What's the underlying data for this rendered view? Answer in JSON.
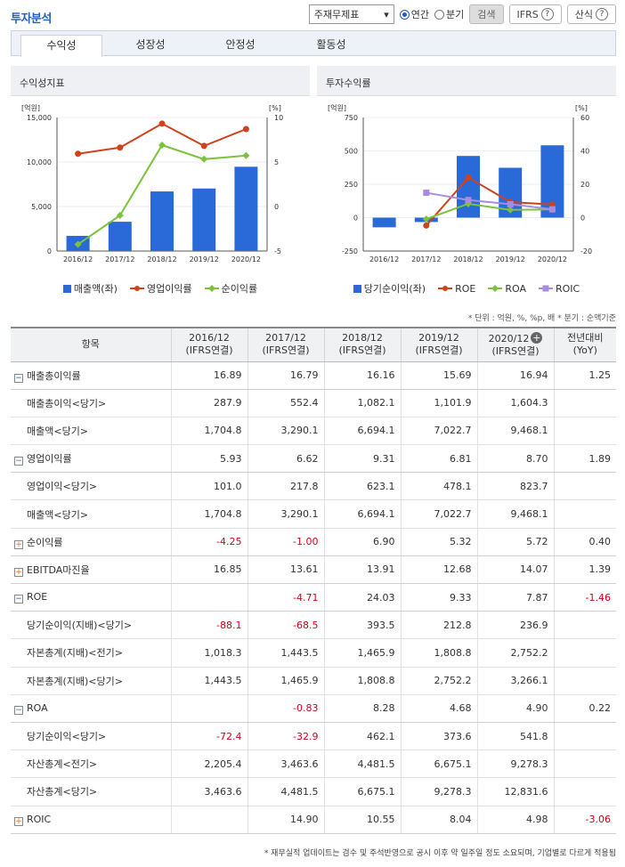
{
  "header": {
    "title": "투자분석",
    "select_value": "주재무제표",
    "radio_annual": "연간",
    "radio_quarter": "분기",
    "search_label": "검색",
    "ifrs_label": "IFRS",
    "formula_label": "산식",
    "help_glyph": "?"
  },
  "tabs": [
    "수익성",
    "성장성",
    "안정성",
    "활동성"
  ],
  "chart_data": [
    {
      "type": "bar",
      "title": "수익성지표",
      "categories": [
        "2016/12",
        "2017/12",
        "2018/12",
        "2019/12",
        "2020/12"
      ],
      "y_left_label": "[억원]",
      "y_right_label": "[%]",
      "y_left_ticks": [
        "15,000",
        "10,000",
        "5,000",
        "0"
      ],
      "y_right_ticks": [
        "10",
        "5",
        "0",
        "-5"
      ],
      "y_left_range": [
        0,
        15000
      ],
      "y_right_range": [
        -5,
        10
      ],
      "series": [
        {
          "name": "매출액(좌)",
          "kind": "bar",
          "axis": "left",
          "color": "#2a6ad8",
          "values": [
            1704.8,
            3290.1,
            6694.1,
            7022.7,
            9468.1
          ]
        },
        {
          "name": "영업이익률",
          "kind": "line",
          "axis": "right",
          "color": "#d0421b",
          "values": [
            5.93,
            6.62,
            9.31,
            6.81,
            8.7
          ]
        },
        {
          "name": "순이익률",
          "kind": "line",
          "axis": "right",
          "color": "#7cc23a",
          "values": [
            -4.25,
            -1.0,
            6.9,
            5.32,
            5.72
          ]
        }
      ]
    },
    {
      "type": "bar",
      "title": "투자수익률",
      "categories": [
        "2016/12",
        "2017/12",
        "2018/12",
        "2019/12",
        "2020/12"
      ],
      "y_left_label": "[억원]",
      "y_right_label": "[%]",
      "y_left_ticks": [
        "750",
        "500",
        "250",
        "0",
        "-250"
      ],
      "y_right_ticks": [
        "60",
        "40",
        "20",
        "0",
        "-20"
      ],
      "y_left_range": [
        -250,
        750
      ],
      "y_right_range": [
        -20,
        60
      ],
      "series": [
        {
          "name": "당기순이익(좌)",
          "kind": "bar",
          "axis": "left",
          "color": "#2a6ad8",
          "values": [
            -72.4,
            -32.9,
            462.1,
            373.6,
            541.8
          ]
        },
        {
          "name": "ROE",
          "kind": "line",
          "axis": "right",
          "color": "#d0421b",
          "values": [
            null,
            -4.71,
            24.03,
            9.33,
            7.87
          ]
        },
        {
          "name": "ROA",
          "kind": "line",
          "axis": "right",
          "color": "#7cc23a",
          "values": [
            null,
            -0.83,
            8.28,
            4.68,
            4.9
          ]
        },
        {
          "name": "ROIC",
          "kind": "line",
          "axis": "right",
          "color": "#a98be0",
          "values": [
            null,
            14.9,
            10.55,
            8.04,
            4.98
          ]
        }
      ]
    }
  ],
  "unit_note": "* 단위 : 억원, %, %p, 배   * 분기 : 순액기준",
  "table": {
    "columns": [
      {
        "l1": "항목",
        "l2": ""
      },
      {
        "l1": "2016/12",
        "l2": "(IFRS연결)"
      },
      {
        "l1": "2017/12",
        "l2": "(IFRS연결)"
      },
      {
        "l1": "2018/12",
        "l2": "(IFRS연결)"
      },
      {
        "l1": "2019/12",
        "l2": "(IFRS연결)"
      },
      {
        "l1": "2020/12",
        "l2": "(IFRS연결)"
      },
      {
        "l1": "전년대비",
        "l2": "(YoY)"
      }
    ],
    "rows": [
      {
        "label": "매출총이익률",
        "level": 0,
        "toggle": "minus",
        "values": [
          "16.89",
          "16.79",
          "16.16",
          "15.69",
          "16.94",
          "1.25"
        ]
      },
      {
        "label": "매출총이익<당기>",
        "level": 1,
        "values": [
          "287.9",
          "552.4",
          "1,082.1",
          "1,101.9",
          "1,604.3",
          ""
        ]
      },
      {
        "label": "매출액<당기>",
        "level": 1,
        "values": [
          "1,704.8",
          "3,290.1",
          "6,694.1",
          "7,022.7",
          "9,468.1",
          ""
        ]
      },
      {
        "label": "영업이익률",
        "level": 0,
        "toggle": "minus",
        "values": [
          "5.93",
          "6.62",
          "9.31",
          "6.81",
          "8.70",
          "1.89"
        ]
      },
      {
        "label": "영업이익<당기>",
        "level": 1,
        "values": [
          "101.0",
          "217.8",
          "623.1",
          "478.1",
          "823.7",
          ""
        ]
      },
      {
        "label": "매출액<당기>",
        "level": 1,
        "values": [
          "1,704.8",
          "3,290.1",
          "6,694.1",
          "7,022.7",
          "9,468.1",
          ""
        ]
      },
      {
        "label": "순이익률",
        "level": 0,
        "toggle": "plus",
        "values": [
          "-4.25",
          "-1.00",
          "6.90",
          "5.32",
          "5.72",
          "0.40"
        ]
      },
      {
        "label": "EBITDA마진율",
        "level": 0,
        "toggle": "plus",
        "values": [
          "16.85",
          "13.61",
          "13.91",
          "12.68",
          "14.07",
          "1.39"
        ]
      },
      {
        "label": "ROE",
        "level": 0,
        "toggle": "minus",
        "values": [
          "",
          "-4.71",
          "24.03",
          "9.33",
          "7.87",
          "-1.46"
        ]
      },
      {
        "label": "당기순이익(지배)<당기>",
        "level": 1,
        "values": [
          "-88.1",
          "-68.5",
          "393.5",
          "212.8",
          "236.9",
          ""
        ]
      },
      {
        "label": "자본총계(지배)<전기>",
        "level": 1,
        "values": [
          "1,018.3",
          "1,443.5",
          "1,465.9",
          "1,808.8",
          "2,752.2",
          ""
        ]
      },
      {
        "label": "자본총계(지배)<당기>",
        "level": 1,
        "values": [
          "1,443.5",
          "1,465.9",
          "1,808.8",
          "2,752.2",
          "3,266.1",
          ""
        ]
      },
      {
        "label": "ROA",
        "level": 0,
        "toggle": "minus",
        "values": [
          "",
          "-0.83",
          "8.28",
          "4.68",
          "4.90",
          "0.22"
        ]
      },
      {
        "label": "당기순이익<당기>",
        "level": 1,
        "values": [
          "-72.4",
          "-32.9",
          "462.1",
          "373.6",
          "541.8",
          ""
        ]
      },
      {
        "label": "자산총계<전기>",
        "level": 1,
        "values": [
          "2,205.4",
          "3,463.6",
          "4,481.5",
          "6,675.1",
          "9,278.3",
          ""
        ]
      },
      {
        "label": "자산총계<당기>",
        "level": 1,
        "values": [
          "3,463.6",
          "4,481.5",
          "6,675.1",
          "9,278.3",
          "12,831.6",
          ""
        ]
      },
      {
        "label": "ROIC",
        "level": 0,
        "toggle": "plus",
        "values": [
          "",
          "14.90",
          "10.55",
          "8.04",
          "4.98",
          "-3.06"
        ]
      }
    ]
  },
  "footnote": "* 재무실적 업데이트는 검수 및 주석반영으로 공시 이후 약 일주일 정도 소요되며, 기업별로 다르게 적용됨"
}
